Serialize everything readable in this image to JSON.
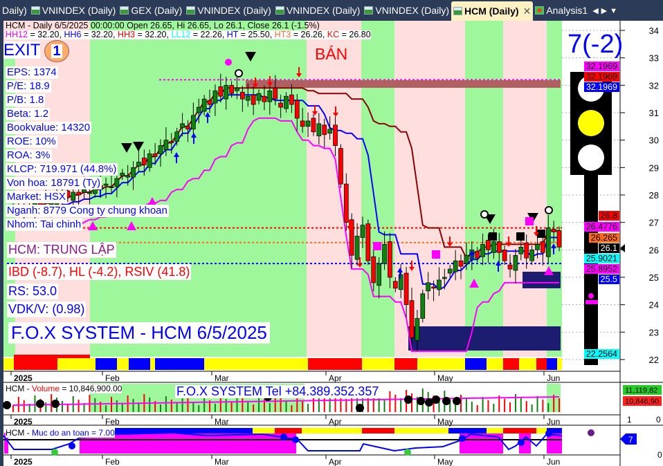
{
  "tabs": [
    {
      "label": "Daily)",
      "active": false
    },
    {
      "label": "VNINDEX (Daily)",
      "active": false
    },
    {
      "label": "GEX (Daily)",
      "active": false
    },
    {
      "label": "VNINDEX (Daily)",
      "active": false
    },
    {
      "label": "VNINDEX (Daily)",
      "active": false
    },
    {
      "label": "VNINDEX (Daily)",
      "active": false
    },
    {
      "label": "HCM (Daily)",
      "active": true
    },
    {
      "label": "Analysis1",
      "active": false
    }
  ],
  "header": {
    "line1": "HCM - Daily 6/5/2025 00:00:00 Open 26.65, Hi 26.65, Lo 26.1, Close 26.1 (-1.5%)",
    "hh12": "HH12",
    "hh12_val": " = 32.20, ",
    "hh6": "HH6",
    "hh6_val": " = 32.20, ",
    "hh3": "HH3",
    "hh3_val": " = 32.20, ",
    "ll12": "LL12",
    "ll12_val": " = 22.26, ",
    "ht": "HT",
    "ht_val": "  = 25.50, ",
    "ht3": "HT3",
    "ht3_val": "  = 26.26, ",
    "kc": "KC",
    "kc_val": " = 26.80"
  },
  "signal": {
    "exit": "EXIT",
    "exit_count": "1",
    "ban": "BÁN",
    "rating": "7(-2)"
  },
  "fundamentals": [
    "EPS: 1374",
    "P/E: 18.9",
    "P/B: 1.8",
    "Beta: 1.2",
    "Bookvalue: 14320",
    "ROE: 10%",
    "ROA: 3%",
    "KLCP: 719.971 (44.8%)",
    "Von hoa: 18791 (Ty)",
    "Market: HSX",
    "Nganh: 8779 Cong ty chung khoan",
    "Nhom: Tai chinh"
  ],
  "status": {
    "state": "HCM: TRUNG LẬP",
    "indicators": "IBD (-8.7), HL (-4.2), RSIV (41.8)",
    "rs": "RS: 53.0",
    "vdk": "VDK/V:  (0.98)",
    "title": "F.O.X SYSTEM - HCM 6/5/2025"
  },
  "price_axis": {
    "ticks": [
      "34",
      "33",
      "32",
      "31",
      "30",
      "29",
      "28",
      "27",
      "26",
      "25",
      "24",
      "23",
      "22"
    ],
    "min": 22,
    "max": 34
  },
  "price_labels": [
    {
      "text": "32.1969",
      "bg": "#ff00ff",
      "fg": "#000"
    },
    {
      "text": "32.1969",
      "bg": "#ff0000",
      "fg": "#000"
    },
    {
      "text": "32.1969",
      "bg": "#0000ff",
      "fg": "#fff"
    },
    {
      "text": "26.8",
      "bg": "#ff0000",
      "fg": "#000"
    },
    {
      "text": "26.4776",
      "bg": "#ff00ff",
      "fg": "#000"
    },
    {
      "text": "26.265",
      "bg": "#ff6a1a",
      "fg": "#000"
    },
    {
      "text": "26.1",
      "bg": "#000000",
      "fg": "#fff"
    },
    {
      "text": "25.9021",
      "bg": "#00ffff",
      "fg": "#000"
    },
    {
      "text": "25.8952",
      "bg": "#ff00ff",
      "fg": "#000"
    },
    {
      "text": "25.5",
      "bg": "#0000ff",
      "fg": "#fff"
    },
    {
      "text": "22.2564",
      "bg": "#00ffff",
      "fg": "#000"
    }
  ],
  "date_axis": [
    "2025",
    "Feb",
    "Mar",
    "Apr",
    "May",
    "Jun"
  ],
  "closes": [
    27.6,
    27.5,
    27.4,
    27.5,
    27.7,
    27.6,
    27.8,
    27.7,
    27.9,
    28.0,
    27.9,
    28.1,
    28.0,
    28.2,
    28.1,
    28.3,
    28.2,
    28.4,
    28.3,
    28.6,
    28.8,
    28.7,
    29.0,
    29.2,
    29.1,
    29.5,
    29.4,
    29.8,
    30.0,
    29.9,
    30.3,
    30.6,
    30.4,
    30.9,
    31.2,
    31.5,
    31.3,
    31.8,
    31.6,
    32.0,
    31.7,
    31.9,
    31.5,
    31.6,
    31.3,
    31.7,
    31.4,
    31.8,
    31.5,
    31.2,
    31.6,
    31.3,
    30.8,
    30.5,
    30.7,
    30.3,
    30.6,
    30.2,
    30.4,
    29.8,
    28.4,
    27.0,
    25.8,
    26.5,
    26.9,
    25.6,
    24.8,
    25.5,
    26.2,
    25.0,
    24.6,
    25.1,
    24.0,
    22.8,
    23.5,
    24.4,
    24.8,
    24.6,
    24.9,
    25.0,
    25.3,
    25.6,
    25.4,
    25.8,
    26.0,
    25.7,
    26.2,
    26.0,
    26.3,
    25.9,
    25.6,
    25.3,
    25.8,
    26.1,
    25.7,
    26.0,
    26.2,
    25.9,
    26.8,
    26.65,
    26.1
  ],
  "volume": {
    "label": "HCM - ",
    "name": "Volume",
    "value": " = 10,846,900.00",
    "tel": "F.O.X SYSTEM Tel +84.389.352.357",
    "labels": [
      {
        "text": "11,119,82",
        "bg": "#22cc22"
      },
      {
        "text": "10,846,90",
        "bg": "#ff2020"
      }
    ],
    "ticks": [
      "1",
      "0"
    ]
  },
  "safety": {
    "label": "HCM - ",
    "name": "Muc do an toan = 7.00",
    "value": "7",
    "ticks": [
      "0"
    ]
  },
  "colors": {
    "up": "#108010",
    "down": "#ff0000",
    "green_band": "#9ef79a",
    "pink_band": "#ffdfdd",
    "ht": "#0000ff",
    "kc": "#8b0000",
    "trail": "#ff00ff"
  }
}
